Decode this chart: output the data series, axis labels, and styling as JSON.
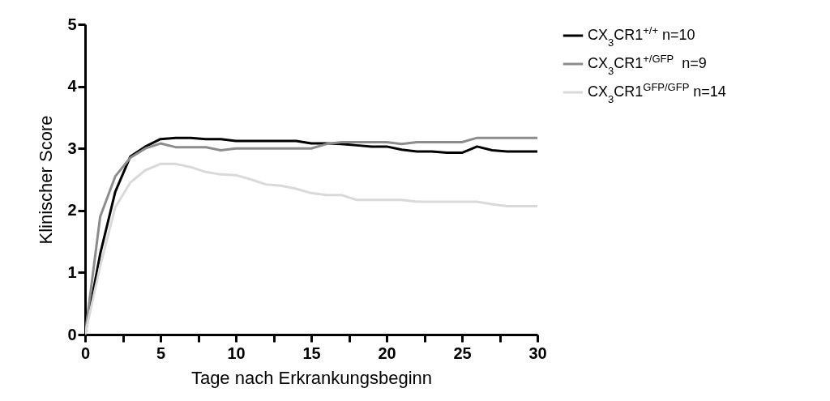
{
  "chart_data": {
    "type": "line",
    "xlabel": "Tage nach Erkrankungsbeginn",
    "ylabel": "Klinischer Score",
    "x": [
      0,
      1,
      2,
      3,
      4,
      5,
      6,
      7,
      8,
      9,
      10,
      11,
      12,
      13,
      14,
      15,
      16,
      17,
      18,
      19,
      20,
      21,
      22,
      23,
      24,
      25,
      26,
      27,
      28,
      29,
      30
    ],
    "series": [
      {
        "name": "CX$_{3}$CR1$^{+/+}$ n=10",
        "color": "#000000",
        "values": [
          0,
          1.3,
          2.3,
          2.87,
          3.03,
          3.15,
          3.17,
          3.17,
          3.15,
          3.15,
          3.12,
          3.12,
          3.12,
          3.12,
          3.12,
          3.08,
          3.08,
          3.07,
          3.05,
          3.03,
          3.03,
          2.98,
          2.95,
          2.95,
          2.93,
          2.93,
          3.03,
          2.97,
          2.95,
          2.95,
          2.95
        ]
      },
      {
        "name": "CX$_{3}$CR1$^{+/GFP}$  n=9",
        "color": "#8c8c8c",
        "values": [
          0,
          1.9,
          2.55,
          2.85,
          3.0,
          3.08,
          3.02,
          3.02,
          3.02,
          2.97,
          3.0,
          3.0,
          3.0,
          3.0,
          3.0,
          3.0,
          3.07,
          3.1,
          3.1,
          3.1,
          3.1,
          3.07,
          3.1,
          3.1,
          3.1,
          3.1,
          3.17,
          3.17,
          3.17,
          3.17,
          3.17
        ]
      },
      {
        "name": "CX$_{3}$CR1$^{GFP/GFP}$ n=14",
        "color": "#d9d9d9",
        "values": [
          0,
          1.1,
          2.05,
          2.45,
          2.65,
          2.75,
          2.75,
          2.7,
          2.62,
          2.58,
          2.57,
          2.5,
          2.42,
          2.4,
          2.35,
          2.28,
          2.25,
          2.25,
          2.17,
          2.17,
          2.17,
          2.17,
          2.14,
          2.14,
          2.14,
          2.14,
          2.14,
          2.1,
          2.07,
          2.07,
          2.07
        ]
      }
    ],
    "xlim": [
      0,
      30
    ],
    "xticks": [
      0,
      {
        "value": 2.5,
        "label": null
      },
      5,
      {
        "value": 7.5,
        "label": null
      },
      10,
      {
        "value": 12.5,
        "label": null
      },
      15,
      {
        "value": 17.5,
        "label": null
      },
      20,
      {
        "value": 22.5,
        "label": null
      },
      25,
      {
        "value": 27.5,
        "label": null
      },
      30
    ],
    "ylim": [
      0,
      5
    ],
    "yticks": [
      0,
      1,
      2,
      3,
      4,
      5
    ],
    "grid": false,
    "legend": "top right",
    "marker": "none",
    "line_style": "solid"
  }
}
